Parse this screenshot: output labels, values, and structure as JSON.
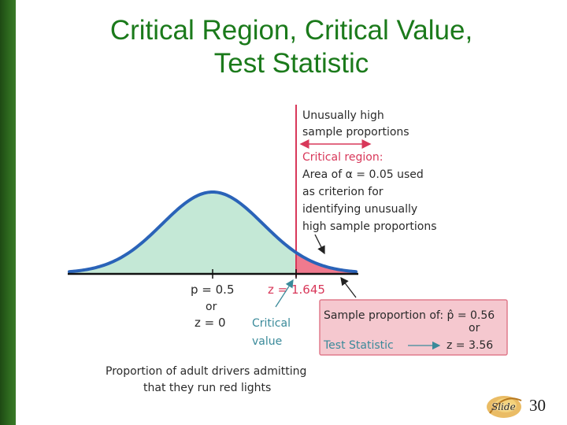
{
  "title": {
    "line1": "Critical Region, Critical Value,",
    "line2": "Test Statistic"
  },
  "annotations": {
    "unusually_high_1": "Unusually high",
    "unusually_high_2": "sample proportions",
    "critical_region": "Critical region:",
    "area_line": "Area of α = 0.05 used",
    "criterion_line": "as criterion for",
    "identifying_line": "identifying unusually",
    "high_sample_line": "high sample proportions",
    "p_label": "p = 0.5",
    "or_label": "or",
    "z0_label": "z = 0",
    "z_crit_label": "z = 1.645",
    "critical_value_1": "Critical",
    "critical_value_2": "value",
    "caption_1": "Proportion of adult drivers admitting",
    "caption_2": "that they run red lights"
  },
  "sample_box": {
    "line1": "Sample proportion of: p̂ = 0.56",
    "or_label": "or",
    "test_statistic_label": "Test Statistic",
    "z_value": "z = 3.56"
  },
  "colors": {
    "title": "#1b7a1b",
    "curve": "#2a63b8",
    "fill": "#c4e8d6",
    "critical_fill": "#f07a8e",
    "critical_text": "#d8385a",
    "box_bg": "#f5c8cf",
    "box_border": "#e07a8c"
  },
  "footer": {
    "slide_word": "Slide",
    "slide_number": "30"
  }
}
